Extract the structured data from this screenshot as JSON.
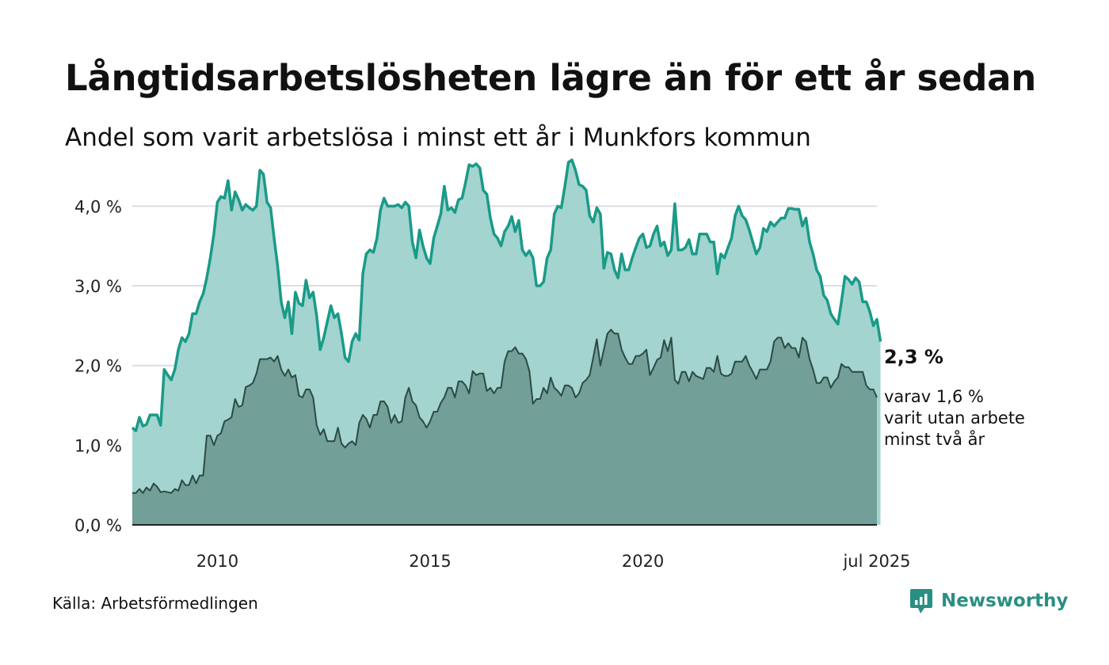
{
  "title": "Långtidsarbetslösheten lägre än för ett år sedan",
  "subtitle": "Andel som varit arbetslösa i minst ett år i Munkfors kommun",
  "source": "Källa: Arbetsförmedlingen",
  "brand": "Newsworthy",
  "brand_icon": "newsworthy-logo-icon",
  "annotation": {
    "value_label": "2,3 %",
    "sub_lines": [
      "varav 1,6 %",
      "varit utan arbete",
      "minst två år"
    ]
  },
  "colors": {
    "one_year_line": "#1a9a88",
    "one_year_fill": "#a3d4cf",
    "two_year_line": "#2c4a44",
    "two_year_fill": "#729f98",
    "grid": "#dcdce4",
    "axis": "#222222"
  },
  "chart_data": {
    "type": "area",
    "x_start": "2008-01",
    "x_end": "2025-07",
    "frequency": "monthly",
    "ylim": [
      0,
      4.6
    ],
    "y_ticks": [
      0,
      1,
      2,
      3,
      4
    ],
    "y_tick_labels": [
      "0,0 %",
      "1,0 %",
      "2,0 %",
      "3,0 %",
      "4,0 %"
    ],
    "x_ticks": [
      "2010-01",
      "2015-01",
      "2020-01",
      "2025-07"
    ],
    "x_tick_labels": [
      "2010",
      "2015",
      "2020",
      "jul 2025"
    ],
    "grid": true,
    "series": [
      {
        "values": [
          1.22,
          1.18,
          1.35,
          1.24,
          1.26,
          1.38,
          1.38,
          1.38,
          1.25,
          1.95,
          1.88,
          1.82,
          1.95,
          2.2,
          2.35,
          2.3,
          2.4,
          2.65,
          2.65,
          2.8,
          2.9,
          3.1,
          3.35,
          3.65,
          4.05,
          4.12,
          4.1,
          4.32,
          3.95,
          4.18,
          4.08,
          3.95,
          4.02,
          3.98,
          3.95,
          4.0,
          4.45,
          4.4,
          4.05,
          3.98,
          3.6,
          3.25,
          2.8,
          2.6,
          2.8,
          2.4,
          2.92,
          2.78,
          2.75,
          3.07,
          2.85,
          2.92,
          2.62,
          2.2,
          2.35,
          2.55,
          2.75,
          2.6,
          2.65,
          2.4,
          2.1,
          2.05,
          2.3,
          2.4,
          2.32,
          3.15,
          3.4,
          3.45,
          3.42,
          3.6,
          3.95,
          4.1,
          4.0,
          4.0,
          4.0,
          4.02,
          3.98,
          4.05,
          4.0,
          3.55,
          3.35,
          3.7,
          3.5,
          3.35,
          3.28,
          3.6,
          3.75,
          3.9,
          4.25,
          3.95,
          3.98,
          3.92,
          4.08,
          4.1,
          4.3,
          4.52,
          4.5,
          4.53,
          4.48,
          4.2,
          4.15,
          3.85,
          3.65,
          3.6,
          3.5,
          3.68,
          3.75,
          3.87,
          3.68,
          3.82,
          3.45,
          3.38,
          3.44,
          3.35,
          3.0,
          3.0,
          3.05,
          3.35,
          3.45,
          3.9,
          4.0,
          3.98,
          4.25,
          4.55,
          4.58,
          4.45,
          4.27,
          4.25,
          4.2,
          3.88,
          3.8,
          3.98,
          3.9,
          3.22,
          3.42,
          3.4,
          3.2,
          3.1,
          3.4,
          3.2,
          3.2,
          3.35,
          3.48,
          3.6,
          3.65,
          3.48,
          3.5,
          3.65,
          3.75,
          3.5,
          3.55,
          3.38,
          3.45,
          4.03,
          3.45,
          3.45,
          3.48,
          3.58,
          3.4,
          3.4,
          3.65,
          3.65,
          3.65,
          3.55,
          3.55,
          3.15,
          3.4,
          3.35,
          3.48,
          3.6,
          3.88,
          4.0,
          3.88,
          3.83,
          3.7,
          3.55,
          3.4,
          3.48,
          3.72,
          3.68,
          3.8,
          3.75,
          3.8,
          3.85,
          3.85,
          3.97,
          3.97,
          3.96,
          3.96,
          3.75,
          3.85,
          3.55,
          3.4,
          3.2,
          3.12,
          2.88,
          2.82,
          2.65,
          2.58,
          2.52,
          2.8,
          3.12,
          3.08,
          3.02,
          3.1,
          3.05,
          2.8,
          2.8,
          2.68,
          2.5,
          2.58,
          2.3
        ]
      },
      {
        "values": [
          0.4,
          0.4,
          0.45,
          0.4,
          0.47,
          0.43,
          0.52,
          0.48,
          0.41,
          0.42,
          0.41,
          0.4,
          0.45,
          0.43,
          0.56,
          0.5,
          0.5,
          0.62,
          0.52,
          0.62,
          0.62,
          1.12,
          1.12,
          1.0,
          1.12,
          1.15,
          1.3,
          1.32,
          1.35,
          1.58,
          1.48,
          1.5,
          1.73,
          1.75,
          1.78,
          1.9,
          2.08,
          2.08,
          2.08,
          2.1,
          2.05,
          2.12,
          1.95,
          1.87,
          1.95,
          1.85,
          1.88,
          1.62,
          1.6,
          1.7,
          1.7,
          1.6,
          1.25,
          1.13,
          1.2,
          1.05,
          1.05,
          1.05,
          1.22,
          1.02,
          0.97,
          1.02,
          1.05,
          1.0,
          1.28,
          1.38,
          1.33,
          1.22,
          1.38,
          1.38,
          1.55,
          1.55,
          1.48,
          1.28,
          1.38,
          1.28,
          1.3,
          1.6,
          1.72,
          1.55,
          1.5,
          1.35,
          1.3,
          1.22,
          1.3,
          1.42,
          1.42,
          1.53,
          1.6,
          1.72,
          1.72,
          1.6,
          1.8,
          1.8,
          1.75,
          1.65,
          1.93,
          1.88,
          1.9,
          1.9,
          1.68,
          1.72,
          1.65,
          1.72,
          1.72,
          2.05,
          2.18,
          2.18,
          2.23,
          2.15,
          2.15,
          2.08,
          1.93,
          1.52,
          1.58,
          1.58,
          1.72,
          1.65,
          1.85,
          1.72,
          1.68,
          1.62,
          1.75,
          1.75,
          1.72,
          1.6,
          1.65,
          1.78,
          1.82,
          1.88,
          2.1,
          2.33,
          2.0,
          2.2,
          2.4,
          2.45,
          2.4,
          2.4,
          2.2,
          2.1,
          2.02,
          2.02,
          2.12,
          2.12,
          2.15,
          2.2,
          1.88,
          1.97,
          2.07,
          2.1,
          2.32,
          2.18,
          2.35,
          1.82,
          1.77,
          1.92,
          1.92,
          1.8,
          1.92,
          1.87,
          1.85,
          1.83,
          1.97,
          1.97,
          1.92,
          2.12,
          1.9,
          1.87,
          1.87,
          1.9,
          2.05,
          2.05,
          2.05,
          2.12,
          2.0,
          1.92,
          1.83,
          1.95,
          1.95,
          1.95,
          2.05,
          2.3,
          2.35,
          2.35,
          2.22,
          2.28,
          2.22,
          2.22,
          2.1,
          2.35,
          2.3,
          2.08,
          1.95,
          1.78,
          1.78,
          1.85,
          1.85,
          1.72,
          1.8,
          1.85,
          2.02,
          1.98,
          1.98,
          1.92,
          1.92,
          1.92,
          1.92,
          1.75,
          1.7,
          1.7,
          1.6
        ]
      }
    ]
  }
}
